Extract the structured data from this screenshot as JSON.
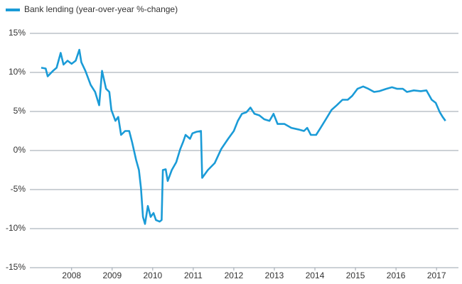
{
  "chart_data": {
    "type": "line",
    "x": [
      2007.25,
      2007.36,
      2007.41,
      2007.54,
      2007.63,
      2007.73,
      2007.8,
      2007.9,
      2008,
      2008.1,
      2008.19,
      2008.24,
      2008.34,
      2008.47,
      2008.58,
      2008.68,
      2008.75,
      2008.85,
      2008.93,
      2008.98,
      2009.08,
      2009.15,
      2009.22,
      2009.32,
      2009.42,
      2009.49,
      2009.59,
      2009.66,
      2009.71,
      2009.76,
      2009.81,
      2009.88,
      2009.95,
      2010.02,
      2010.08,
      2010.17,
      2010.22,
      2010.25,
      2010.32,
      2010.37,
      2010.47,
      2010.58,
      2010.68,
      2010.75,
      2010.81,
      2010.92,
      2010.98,
      2011.08,
      2011.19,
      2011.22,
      2011.36,
      2011.53,
      2011.69,
      2011.86,
      2012,
      2012.1,
      2012.2,
      2012.31,
      2012.41,
      2012.51,
      2012.63,
      2012.75,
      2012.88,
      2012.98,
      2013.08,
      2013.25,
      2013.42,
      2013.59,
      2013.73,
      2013.81,
      2013.9,
      2014.03,
      2014.14,
      2014.27,
      2014.41,
      2014.54,
      2014.68,
      2014.81,
      2014.92,
      2015.05,
      2015.19,
      2015.32,
      2015.46,
      2015.59,
      2015.76,
      2015.9,
      2016.03,
      2016.17,
      2016.27,
      2016.44,
      2016.61,
      2016.75,
      2016.88,
      2016.98,
      2017.08,
      2017.15,
      2017.22
    ],
    "series": [
      {
        "name": "Bank lending (year-over-year %-change)",
        "color": "#1a9bd7",
        "values": [
          10.6,
          10.5,
          9.5,
          10.2,
          10.6,
          12.5,
          11,
          11.5,
          11.1,
          11.5,
          12.9,
          11.3,
          10.2,
          8.4,
          7.5,
          5.8,
          10.2,
          7.9,
          7.5,
          5.2,
          3.8,
          4.3,
          2,
          2.5,
          2.5,
          1.1,
          -1.2,
          -2.5,
          -4.8,
          -8.5,
          -9.4,
          -7.1,
          -8.5,
          -8,
          -8.9,
          -9.1,
          -8.9,
          -2.5,
          -2.4,
          -3.9,
          -2.5,
          -1.5,
          0.2,
          1.1,
          2,
          1.5,
          2.2,
          2.4,
          2.5,
          -3.5,
          -2.5,
          -1.6,
          0.2,
          1.5,
          2.5,
          3.8,
          4.7,
          4.9,
          5.5,
          4.7,
          4.5,
          4,
          3.8,
          4.7,
          3.4,
          3.4,
          2.9,
          2.7,
          2.5,
          2.9,
          2,
          2,
          2.9,
          4,
          5.2,
          5.8,
          6.5,
          6.5,
          7,
          7.9,
          8.2,
          7.9,
          7.5,
          7.6,
          7.9,
          8.1,
          7.9,
          7.9,
          7.5,
          7.7,
          7.6,
          7.7,
          6.5,
          6.1,
          4.9,
          4.3,
          3.8
        ]
      }
    ],
    "xlim": [
      2006.97,
      2017.54
    ],
    "xticks": [
      2008,
      2009,
      2010,
      2011,
      2012,
      2013,
      2014,
      2015,
      2016,
      2017
    ],
    "ylim": [
      -15,
      15
    ],
    "yticks": [
      {
        "value": -15,
        "label": "-15%"
      },
      {
        "value": -10,
        "label": "-10%"
      },
      {
        "value": -5,
        "label": "-5%"
      },
      {
        "value": 0,
        "label": "0%"
      },
      {
        "value": 5,
        "label": "5%"
      },
      {
        "value": 10,
        "label": "10%"
      },
      {
        "value": 15,
        "label": "15%"
      }
    ],
    "grid": true
  }
}
